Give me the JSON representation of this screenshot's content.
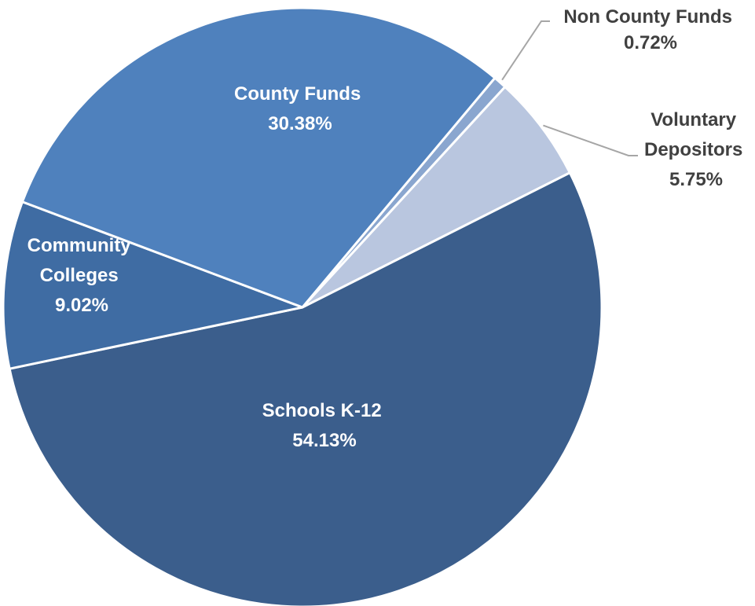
{
  "chart_data": {
    "type": "pie",
    "title": "",
    "start_angle_deg": 40,
    "direction": "clockwise",
    "slices": [
      {
        "line1": "Non County Funds",
        "line2": "",
        "pct": "0.72%",
        "value": 0.72,
        "color": "#8aa6cf",
        "label_color": "#404040",
        "label_position": "outside"
      },
      {
        "line1": "Voluntary",
        "line2": "Depositors",
        "pct": "5.75%",
        "value": 5.75,
        "color": "#b9c6df",
        "label_color": "#404040",
        "label_position": "outside"
      },
      {
        "line1": "Schools K-12",
        "line2": "",
        "pct": "54.13%",
        "value": 54.13,
        "color": "#3b5e8c",
        "label_color": "#ffffff",
        "label_position": "inside"
      },
      {
        "line1": "Community",
        "line2": "Colleges",
        "pct": "9.02%",
        "value": 9.02,
        "color": "#3f6ca3",
        "label_color": "#ffffff",
        "label_position": "inside"
      },
      {
        "line1": "County Funds",
        "line2": "",
        "pct": "30.38%",
        "value": 30.38,
        "color": "#4f81bd",
        "label_color": "#ffffff",
        "label_position": "inside"
      }
    ],
    "leader_line_color": "#a6a6a6",
    "legend": "none"
  }
}
